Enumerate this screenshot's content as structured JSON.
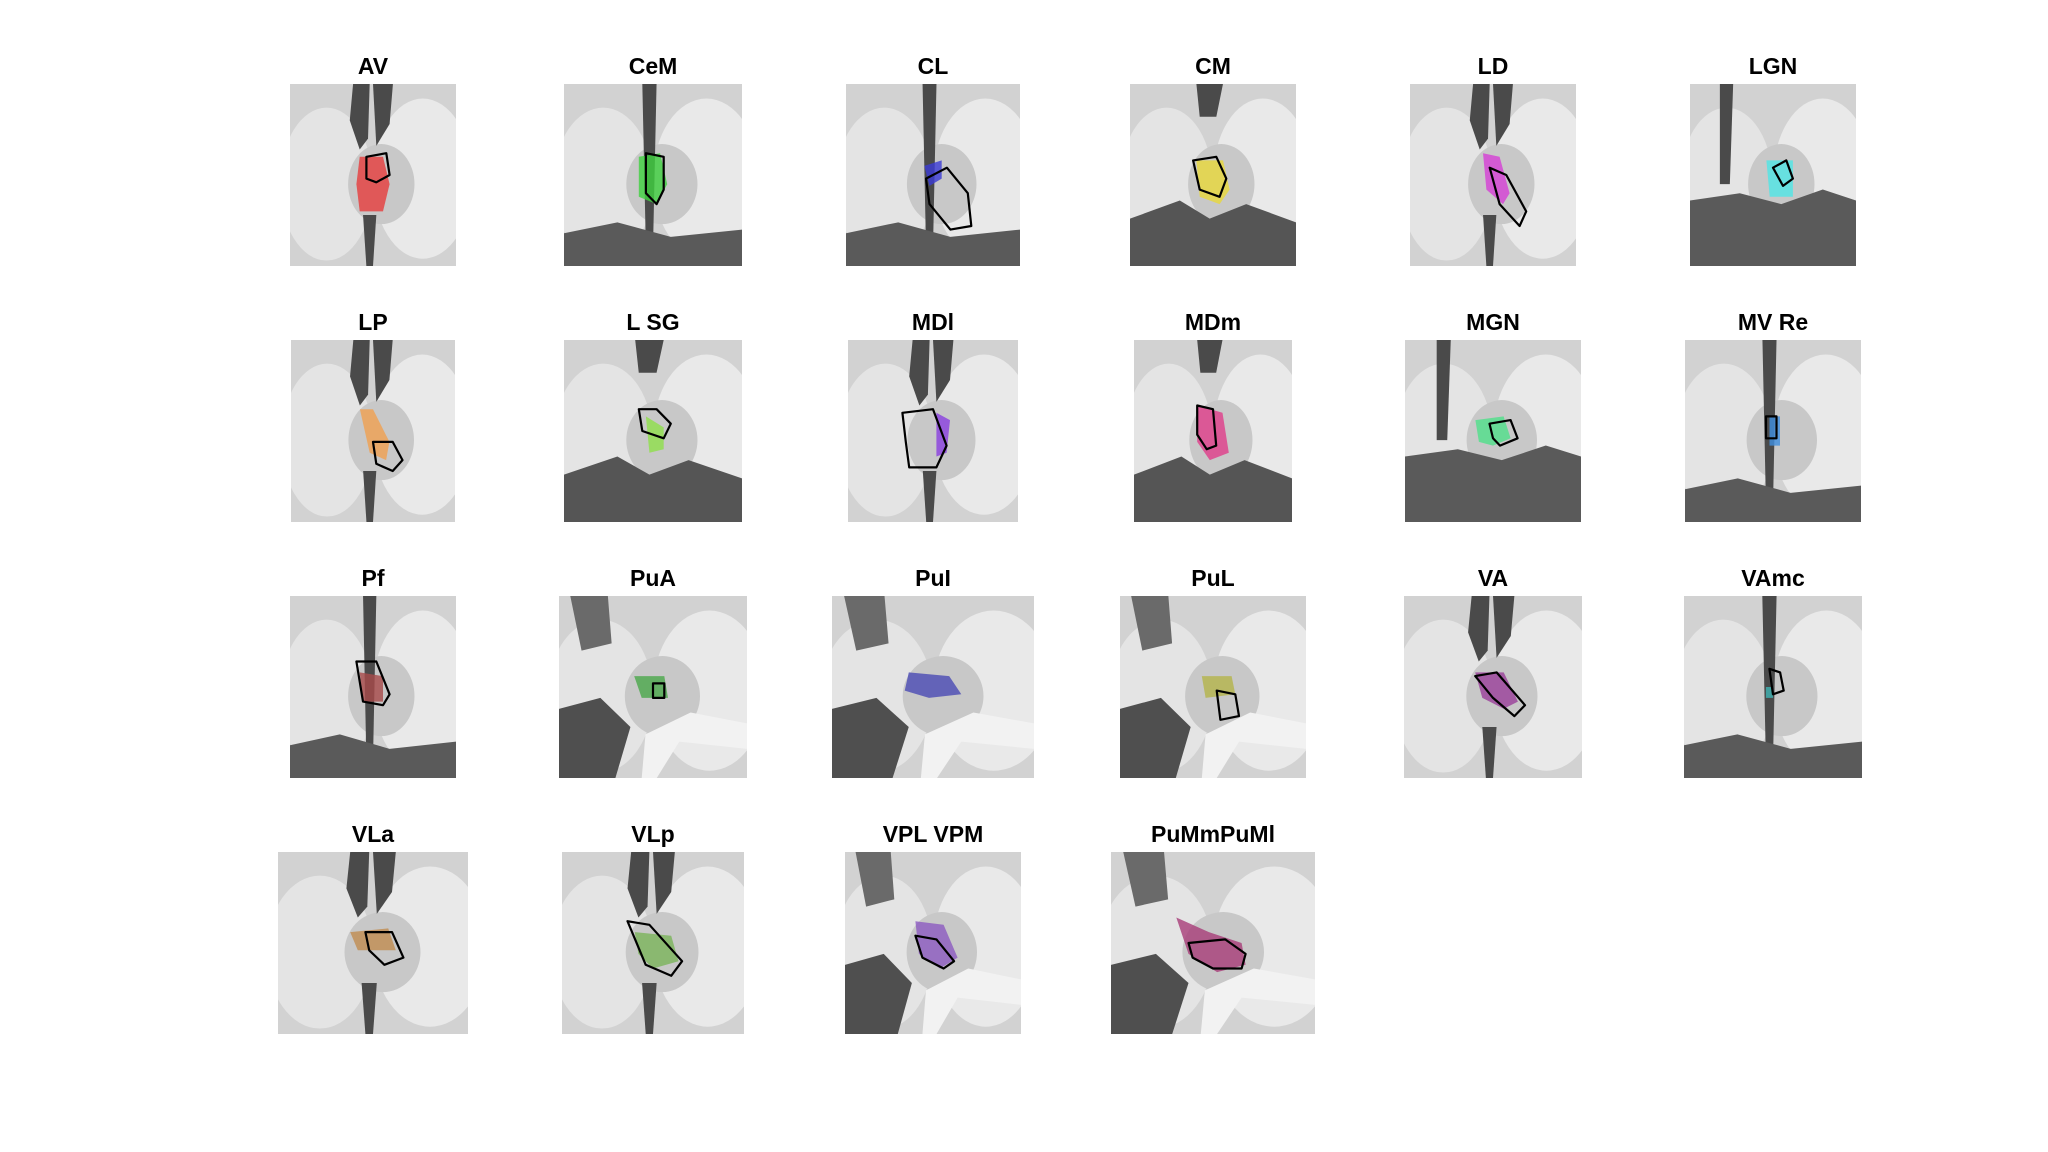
{
  "figure": {
    "panels": [
      {
        "title": "AV",
        "color": "#e63c3c",
        "view": "axial-a"
      },
      {
        "title": "CeM",
        "color": "#3fd13f",
        "view": "axial-b"
      },
      {
        "title": "CL",
        "color": "#3b3bd6",
        "view": "axial-b"
      },
      {
        "title": "CM",
        "color": "#e8d83a",
        "view": "axial-c"
      },
      {
        "title": "LD",
        "color": "#d63fd6",
        "view": "axial-a"
      },
      {
        "title": "LGN",
        "color": "#4fe6e6",
        "view": "axial-d"
      },
      {
        "title": "LP",
        "color": "#f0a050",
        "view": "axial-a"
      },
      {
        "title": "L SG",
        "color": "#8ee04a",
        "view": "axial-c"
      },
      {
        "title": "MDl",
        "color": "#8a3fe0",
        "view": "axial-a"
      },
      {
        "title": "MDm",
        "color": "#e03c8a",
        "view": "axial-c"
      },
      {
        "title": "MGN",
        "color": "#4fe08a",
        "view": "axial-d"
      },
      {
        "title": "MV Re",
        "color": "#3f8ee0",
        "view": "axial-b"
      },
      {
        "title": "Pf",
        "color": "#a84a4a",
        "view": "axial-b"
      },
      {
        "title": "PuA",
        "color": "#4aa84a",
        "view": "axial-e"
      },
      {
        "title": "PuI",
        "color": "#4a4ab4",
        "view": "axial-e"
      },
      {
        "title": "PuL",
        "color": "#b4b44a",
        "view": "axial-e"
      },
      {
        "title": "VA",
        "color": "#9a3f9a",
        "view": "axial-a"
      },
      {
        "title": "VAmc",
        "color": "#3fb4b4",
        "view": "axial-b"
      },
      {
        "title": "VLa",
        "color": "#c08c50",
        "view": "axial-a"
      },
      {
        "title": "VLp",
        "color": "#7ab45a",
        "view": "axial-a"
      },
      {
        "title": "VPL VPM",
        "color": "#8c5ac0",
        "view": "axial-e"
      },
      {
        "title": "PuMmPuMl",
        "color": "#a83c78",
        "view": "axial-e"
      }
    ]
  }
}
